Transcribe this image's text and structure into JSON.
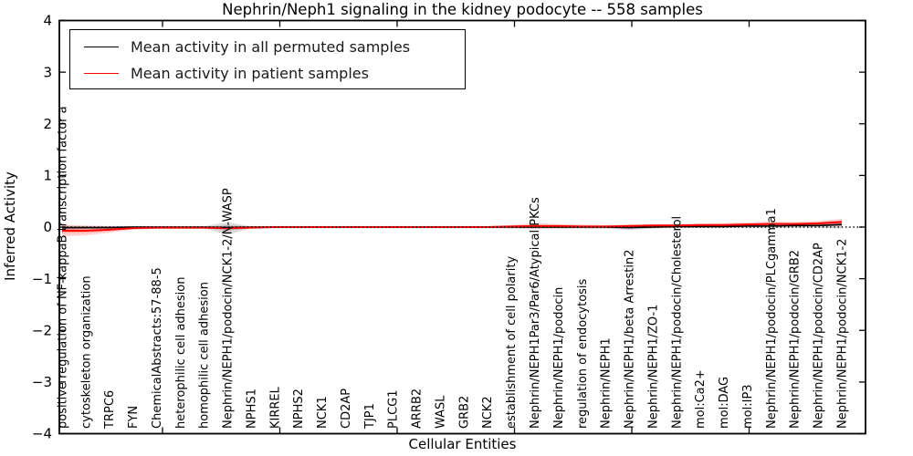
{
  "chart_data": {
    "type": "line",
    "title": "Nephrin/Neph1 signaling in the kidney podocyte -- 558 samples",
    "xlabel": "Cellular Entities",
    "ylabel": "Inferred Activity",
    "ylim": [
      -4,
      4
    ],
    "yticks": [
      4,
      3,
      2,
      1,
      0,
      -1,
      -2,
      -3,
      -4
    ],
    "grid": false,
    "legend_position": "upper left",
    "zero_reference_line": "dotted",
    "categories": [
      "positive regulation of NF-kappaB transcription factor a",
      "cytoskeleton organization",
      "TRPC6",
      "FYN",
      "ChemicalAbstracts:57-88-5",
      "heterophilic cell adhesion",
      "homophilic cell adhesion",
      "Nephrin/NEPH1/podocin/NCK1-2/N-WASP",
      "NPHS1",
      "KIRREL",
      "NPHS2",
      "NCK1",
      "CD2AP",
      "TJP1",
      "PLCG1",
      "ARRB2",
      "WASL",
      "GRB2",
      "NCK2",
      "establishment of cell polarity",
      "Nephrin/NEPH1Par3/Par6/Atypical PKCs",
      "Nephrin/NEPH1/podocin",
      "regulation of endocytosis",
      "Nephrin/NEPH1",
      "Nephrin/NEPH1/beta Arrestin2",
      "Nephrin/NEPH1/ZO-1",
      "Nephrin/NEPH1/podocin/Cholesterol",
      "mol:Ca2+",
      "mol:DAG",
      "mol:IP3",
      "Nephrin/NEPH1/podocin/PLCgamma1",
      "Nephrin/NEPH1/podocin/GRB2",
      "Nephrin/NEPH1/podocin/CD2AP",
      "Nephrin/NEPH1/podocin/NCK1-2"
    ],
    "series": [
      {
        "name": "Mean activity in all permuted samples",
        "color": "#000000",
        "band_color": "rgba(0,0,0,0.14)",
        "values": [
          -0.01,
          -0.01,
          -0.01,
          0.0,
          0.0,
          0.0,
          0.0,
          -0.01,
          0.0,
          0.0,
          0.0,
          0.0,
          0.0,
          0.0,
          0.0,
          0.0,
          0.0,
          0.0,
          0.0,
          0.0,
          0.0,
          0.0,
          0.0,
          0.0,
          -0.01,
          0.0,
          0.01,
          0.01,
          0.01,
          0.02,
          0.02,
          0.03,
          0.03,
          0.05
        ],
        "band_lo": [
          -0.05,
          -0.04,
          -0.03,
          -0.02,
          -0.02,
          -0.02,
          -0.02,
          -0.15,
          -0.02,
          -0.02,
          -0.02,
          -0.02,
          -0.02,
          -0.02,
          -0.02,
          -0.02,
          -0.02,
          -0.02,
          -0.02,
          -0.03,
          -0.03,
          -0.03,
          -0.03,
          -0.03,
          -0.06,
          -0.03,
          -0.02,
          -0.02,
          -0.02,
          -0.02,
          -0.02,
          -0.01,
          -0.01,
          -0.03
        ],
        "band_hi": [
          0.03,
          0.02,
          0.02,
          0.02,
          0.02,
          0.02,
          0.02,
          0.09,
          0.02,
          0.02,
          0.02,
          0.02,
          0.02,
          0.02,
          0.02,
          0.02,
          0.02,
          0.02,
          0.02,
          0.02,
          0.02,
          0.02,
          0.02,
          0.02,
          0.04,
          0.03,
          0.03,
          0.03,
          0.03,
          0.04,
          0.05,
          0.05,
          0.06,
          0.08
        ]
      },
      {
        "name": "Mean activity in patient samples",
        "color": "#ff0000",
        "band_color": "rgba(255,0,0,0.18)",
        "values": [
          -0.07,
          -0.07,
          -0.05,
          -0.02,
          -0.01,
          -0.01,
          -0.01,
          -0.02,
          -0.01,
          0.0,
          0.0,
          0.0,
          0.0,
          0.0,
          0.0,
          0.0,
          0.0,
          0.0,
          0.0,
          0.01,
          0.02,
          0.02,
          0.01,
          0.01,
          0.02,
          0.03,
          0.03,
          0.04,
          0.04,
          0.05,
          0.06,
          0.06,
          0.07,
          0.1
        ],
        "band_lo": [
          -0.18,
          -0.16,
          -0.11,
          -0.05,
          -0.03,
          -0.03,
          -0.03,
          -0.05,
          -0.03,
          -0.02,
          -0.02,
          -0.02,
          -0.02,
          -0.02,
          -0.02,
          -0.02,
          -0.02,
          -0.02,
          -0.02,
          -0.02,
          -0.03,
          -0.02,
          -0.02,
          -0.02,
          -0.02,
          -0.01,
          0.0,
          0.0,
          0.0,
          0.01,
          0.01,
          0.02,
          0.02,
          0.03
        ],
        "band_hi": [
          0.04,
          0.03,
          0.02,
          0.02,
          0.01,
          0.01,
          0.01,
          0.02,
          0.01,
          0.02,
          0.02,
          0.02,
          0.02,
          0.02,
          0.02,
          0.02,
          0.02,
          0.02,
          0.02,
          0.04,
          0.08,
          0.06,
          0.05,
          0.04,
          0.05,
          0.06,
          0.06,
          0.07,
          0.08,
          0.09,
          0.11,
          0.1,
          0.12,
          0.16
        ]
      }
    ]
  }
}
